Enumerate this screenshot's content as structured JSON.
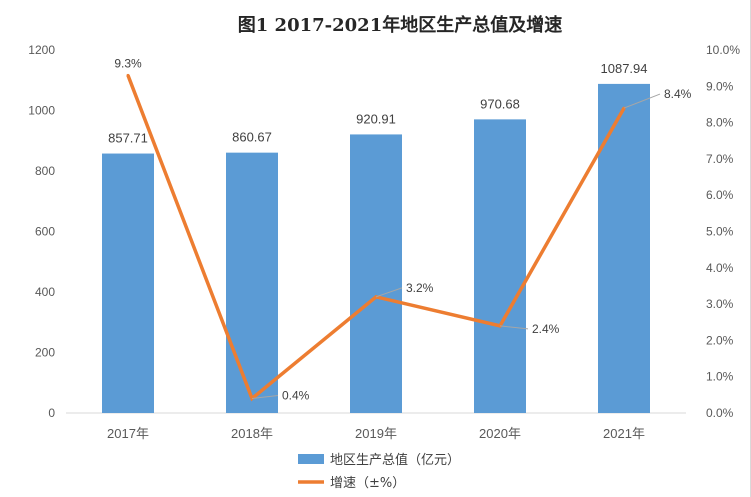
{
  "chart_data": {
    "type": "bar",
    "title": "图1   2017-2021年地区生产总值及增速",
    "categories": [
      "2017年",
      "2018年",
      "2019年",
      "2020年",
      "2021年"
    ],
    "series": [
      {
        "name": "地区生产总值（亿元）",
        "type": "bar",
        "axis": "left",
        "values": [
          857.71,
          860.67,
          920.91,
          970.68,
          1087.94
        ],
        "labels": [
          "857.71",
          "860.67",
          "920.91",
          "970.68",
          "1087.94"
        ],
        "color": "#5b9bd5"
      },
      {
        "name": "增速（±%）",
        "type": "line",
        "axis": "right",
        "values": [
          9.3,
          0.4,
          3.2,
          2.4,
          8.4
        ],
        "labels": [
          "9.3%",
          "0.4%",
          "3.2%",
          "2.4%",
          "8.4%"
        ],
        "color": "#ed7d31"
      }
    ],
    "y_left": {
      "lim": [
        0,
        1200
      ],
      "ticks": [
        "0",
        "200",
        "400",
        "600",
        "800",
        "1000",
        "1200"
      ]
    },
    "y_right": {
      "lim": [
        0,
        10
      ],
      "ticks": [
        "0.0%",
        "1.0%",
        "2.0%",
        "3.0%",
        "4.0%",
        "5.0%",
        "6.0%",
        "7.0%",
        "8.0%",
        "9.0%",
        "10.0%"
      ]
    },
    "grid": false,
    "legend_position": "bottom"
  }
}
